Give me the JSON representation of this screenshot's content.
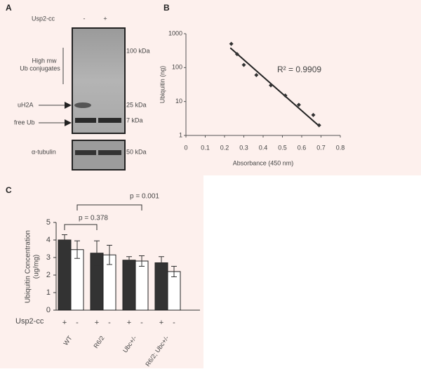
{
  "panels": {
    "a": "A",
    "b": "B",
    "c": "C"
  },
  "blot": {
    "treatment_label": "Usp2-cc",
    "lanes": [
      "-",
      "+"
    ],
    "markers": [
      "100 kDa",
      "25 kDa",
      "7 kDa",
      "50 kDa"
    ],
    "bracket_label": [
      "High mw",
      "Ub conjugates"
    ],
    "arrows": [
      "uH2A",
      "free Ub"
    ],
    "loading_label": "α-tubulin"
  },
  "chart_data": [
    {
      "type": "scatter",
      "x": [
        0.235,
        0.265,
        0.3,
        0.365,
        0.44,
        0.515,
        0.585,
        0.66,
        0.69
      ],
      "values": [
        500,
        250,
        120,
        60,
        30,
        15,
        8,
        4,
        2
      ],
      "fit": {
        "x": [
          0.23,
          0.69
        ],
        "values": [
          380,
          1.9
        ]
      },
      "xlim": [
        0,
        0.8
      ],
      "xticks": [
        0,
        0.1,
        0.2,
        0.3,
        0.4,
        0.5,
        0.6,
        0.7,
        0.8
      ],
      "ylim": [
        1,
        1000
      ],
      "yticks": [
        1,
        10,
        100,
        1000
      ],
      "log_y": true,
      "xlabel": "Absorbance (450 nm)",
      "ylabel": "Ubiquitin (ng)",
      "annotation": "R² = 0.9909",
      "color": "#333333"
    },
    {
      "type": "bar",
      "categories": [
        "WT",
        "R6/2",
        "Ubc+/-",
        "R6/2; Ubc+/-"
      ],
      "series": [
        {
          "name": "+",
          "color": "#333333",
          "values": [
            4.0,
            3.25,
            2.85,
            2.7
          ],
          "errors": [
            0.3,
            0.7,
            0.2,
            0.35
          ]
        },
        {
          "name": "-",
          "color": "#ffffff",
          "values": [
            3.45,
            3.15,
            2.8,
            2.2
          ],
          "errors": [
            0.5,
            0.55,
            0.3,
            0.3
          ]
        }
      ],
      "ylim": [
        0,
        5
      ],
      "yticks": [
        0,
        1,
        2,
        3,
        4,
        5
      ],
      "ylabel": [
        "Ubiquitin Concentration",
        "(ug/mg)"
      ],
      "row_label": "Usp2-cc",
      "annotations": [
        "p = 0.378",
        "p = 0.001"
      ]
    }
  ]
}
